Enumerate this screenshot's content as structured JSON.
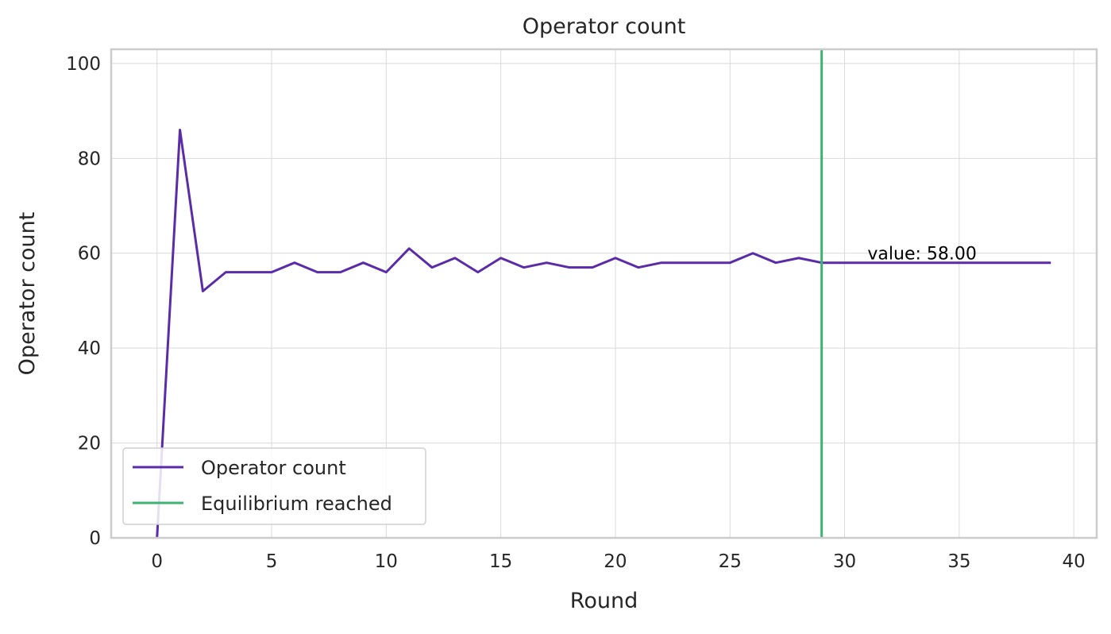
{
  "chart_data": {
    "type": "line",
    "title": "Operator count",
    "xlabel": "Round",
    "ylabel": "Operator count",
    "xlim": [
      -2,
      41
    ],
    "ylim": [
      0,
      103
    ],
    "xticks": [
      0,
      5,
      10,
      15,
      20,
      25,
      30,
      35,
      40
    ],
    "yticks": [
      0,
      20,
      40,
      60,
      80,
      100
    ],
    "grid": true,
    "legend_position": "lower-left",
    "series": [
      {
        "name": "Operator count",
        "color": "#5b2ca8",
        "x": [
          0,
          1,
          2,
          3,
          4,
          5,
          6,
          7,
          8,
          9,
          10,
          11,
          12,
          13,
          14,
          15,
          16,
          17,
          18,
          19,
          20,
          21,
          22,
          23,
          24,
          25,
          26,
          27,
          28,
          29,
          30,
          31,
          32,
          33,
          34,
          35,
          36,
          37,
          38,
          39
        ],
        "values": [
          0,
          86,
          52,
          56,
          56,
          56,
          58,
          56,
          56,
          58,
          56,
          61,
          57,
          59,
          56,
          59,
          57,
          58,
          57,
          57,
          59,
          57,
          58,
          58,
          58,
          58,
          60,
          58,
          59,
          58,
          58,
          58,
          58,
          58,
          58,
          58,
          58,
          58,
          58,
          58
        ]
      }
    ],
    "vline": {
      "name": "Equilibrium reached",
      "x": 29,
      "color": "#3cb371"
    },
    "annotation": {
      "text": "value: 58.00",
      "x": 31,
      "y": 60
    }
  }
}
